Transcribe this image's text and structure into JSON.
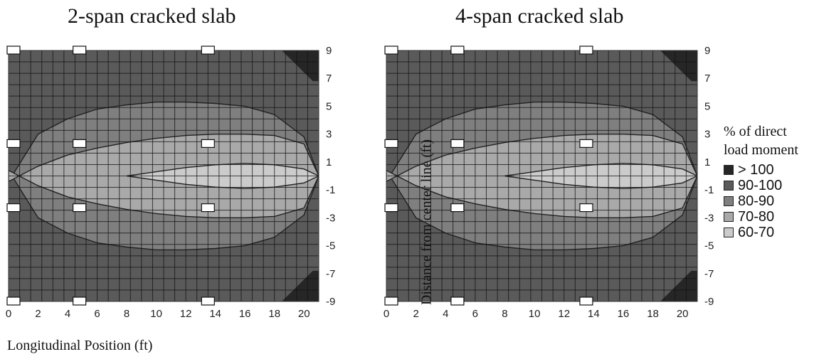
{
  "chart_data": [
    {
      "type": "heatmap",
      "title": "2-span cracked slab",
      "xlabel": "Longitudinal Position (ft)",
      "ylabel": "",
      "xticks": [
        "0",
        "2",
        "4",
        "6",
        "8",
        "10",
        "12",
        "14",
        "16",
        "18",
        "20"
      ],
      "yticks": [
        "9",
        "7",
        "5",
        "3",
        "1",
        "-1",
        "-3",
        "-5",
        "-7",
        "-9"
      ],
      "xlim": [
        0,
        21
      ],
      "ylim": [
        -9,
        9
      ],
      "levels": [
        ">100",
        "90-100",
        "80-90",
        "70-80",
        "60-70"
      ],
      "contour_x": [
        0,
        2,
        4,
        6,
        8,
        10,
        12,
        14,
        16,
        18,
        20,
        21
      ],
      "contours": {
        "upper_90": [
          -0.4,
          3.0,
          4.1,
          4.8,
          5.1,
          5.3,
          5.3,
          5.2,
          5.0,
          4.4,
          2.8,
          0.0
        ],
        "upper_80": [
          -0.4,
          0.7,
          1.5,
          2.0,
          2.4,
          2.7,
          2.9,
          3.0,
          3.0,
          2.9,
          2.3,
          0.0
        ],
        "upper_70": [
          null,
          null,
          null,
          null,
          0.0,
          0.3,
          0.6,
          0.8,
          0.9,
          0.8,
          0.5,
          0.0
        ]
      },
      "gauges": [
        [
          0,
          9
        ],
        [
          4.8,
          9
        ],
        [
          13.5,
          9
        ],
        [
          0,
          2.3
        ],
        [
          4.8,
          2.3
        ],
        [
          13.5,
          2.3
        ],
        [
          0,
          -2.3
        ],
        [
          4.8,
          -2.3
        ],
        [
          13.5,
          -2.3
        ],
        [
          0,
          -9
        ],
        [
          4.8,
          -9
        ],
        [
          13.5,
          -9
        ]
      ]
    },
    {
      "type": "heatmap",
      "title": "4-span cracked slab",
      "xlabel": "",
      "ylabel": "Distance from center line (ft)",
      "xticks": [
        "0",
        "2",
        "4",
        "6",
        "8",
        "10",
        "12",
        "14",
        "16",
        "18",
        "20"
      ],
      "yticks": [
        "9",
        "7",
        "5",
        "3",
        "1",
        "-1",
        "-3",
        "-5",
        "-7",
        "-9"
      ],
      "xlim": [
        0,
        21
      ],
      "ylim": [
        -9,
        9
      ],
      "levels": [
        ">100",
        "90-100",
        "80-90",
        "70-80",
        "60-70"
      ],
      "contour_x": [
        0,
        2,
        4,
        6,
        8,
        10,
        12,
        14,
        16,
        18,
        20,
        21
      ],
      "contours": {
        "upper_90": [
          -0.4,
          3.0,
          4.1,
          4.8,
          5.1,
          5.3,
          5.3,
          5.2,
          5.0,
          4.4,
          2.8,
          0.0
        ],
        "upper_80": [
          -0.4,
          0.7,
          1.5,
          2.0,
          2.4,
          2.7,
          2.9,
          3.0,
          3.0,
          2.9,
          2.3,
          0.0
        ],
        "upper_70": [
          null,
          null,
          null,
          null,
          0.0,
          0.3,
          0.6,
          0.8,
          0.9,
          0.8,
          0.5,
          0.0
        ]
      },
      "gauges": [
        [
          0,
          9
        ],
        [
          4.8,
          9
        ],
        [
          13.5,
          9
        ],
        [
          0,
          2.3
        ],
        [
          4.8,
          2.3
        ],
        [
          13.5,
          2.3
        ],
        [
          0,
          -2.3
        ],
        [
          4.8,
          -2.3
        ],
        [
          13.5,
          -2.3
        ],
        [
          0,
          -9
        ],
        [
          4.8,
          -9
        ],
        [
          13.5,
          -9
        ]
      ]
    }
  ],
  "legend": {
    "title_line1": "% of direct",
    "title_line2": "load moment",
    "items": [
      {
        "label": "> 100",
        "color": "#262626"
      },
      {
        "label": "90-100",
        "color": "#5a5a5a"
      },
      {
        "label": "80-90",
        "color": "#7f7f7f"
      },
      {
        "label": "70-80",
        "color": "#a9a9a9"
      },
      {
        "label": "60-70",
        "color": "#cbcbcb"
      }
    ]
  },
  "colors": {
    "gridline": "#111111",
    "contour": "#222222",
    "gauge_fill": "#ffffff"
  }
}
